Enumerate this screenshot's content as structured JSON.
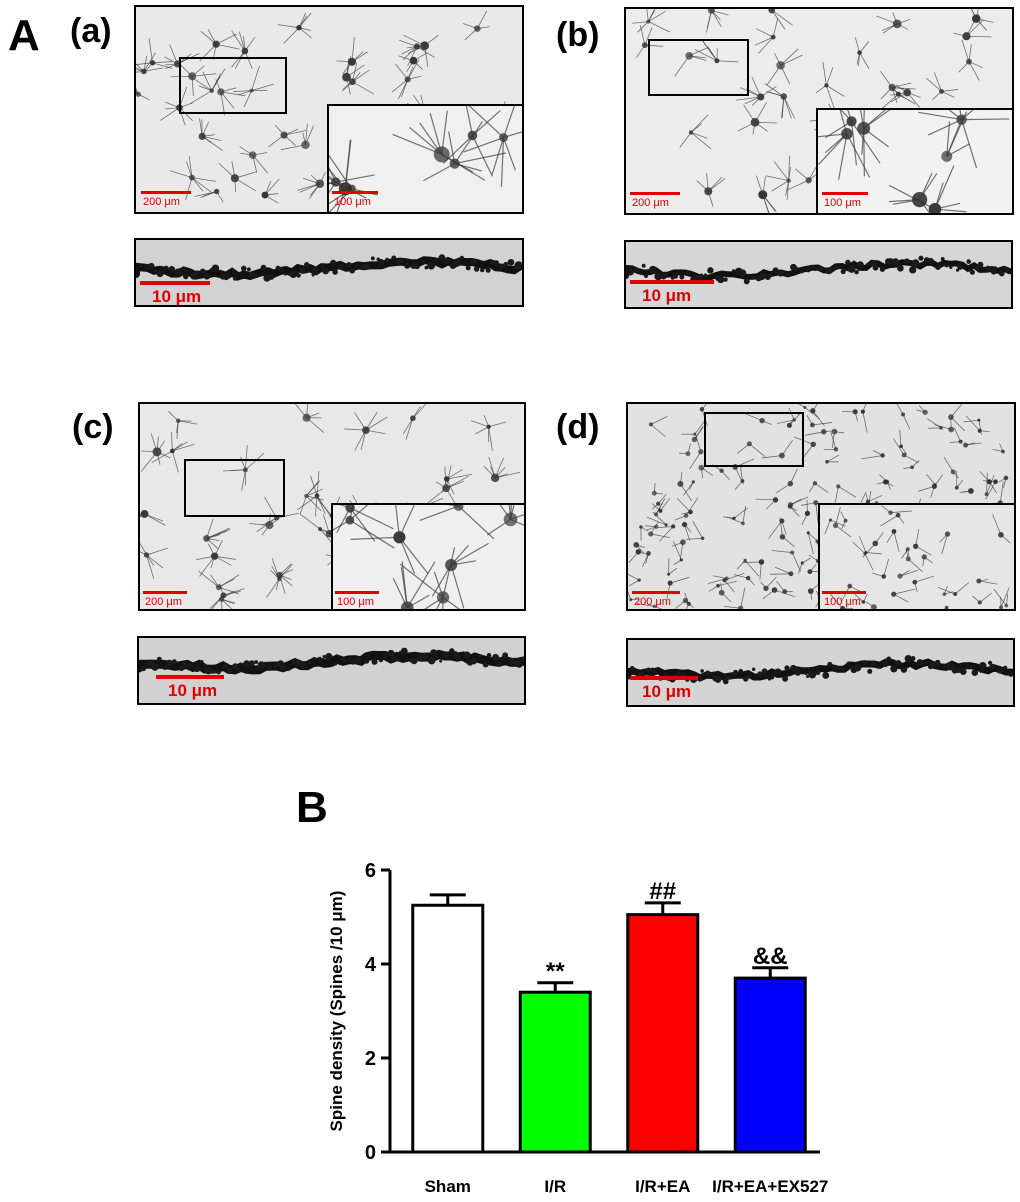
{
  "panel_a": {
    "letter": "A",
    "subpanels": [
      {
        "label": "(a)",
        "scale_main": "200 μm",
        "scale_inset": "100 μm",
        "scale_dendrite": "10 μm"
      },
      {
        "label": "(b)",
        "scale_main": "200 μm",
        "scale_inset": "100 μm",
        "scale_dendrite": "10 μm"
      },
      {
        "label": "(c)",
        "scale_main": "200 μm",
        "scale_inset": "100 μm",
        "scale_dendrite": "10 μm"
      },
      {
        "label": "(d)",
        "scale_main": "200 μm",
        "scale_inset": "100 μm",
        "scale_dendrite": "10 μm"
      }
    ]
  },
  "panel_b": {
    "letter": "B"
  },
  "colors": {
    "scale_bar": "#e00000",
    "sham": "#ffffff",
    "ir": "#00ff00",
    "ir_ea": "#ff0000",
    "ir_ea_ex527": "#0000ff"
  },
  "chart_data": {
    "type": "bar",
    "categories": [
      "Sham",
      "I/R",
      "I/R+EA",
      "I/R+EA+EX527"
    ],
    "values": [
      5.25,
      3.4,
      5.05,
      3.7
    ],
    "errors": [
      0.22,
      0.2,
      0.25,
      0.22
    ],
    "annotations": [
      "",
      "**",
      "##",
      "&&"
    ],
    "bar_colors": [
      "#ffffff",
      "#00ff00",
      "#ff0000",
      "#0000ff"
    ],
    "xlabel": "",
    "ylabel": "Spine density (Spines /10 μm)",
    "ylim": [
      0,
      6
    ],
    "yticks": [
      0,
      2,
      4,
      6
    ]
  }
}
